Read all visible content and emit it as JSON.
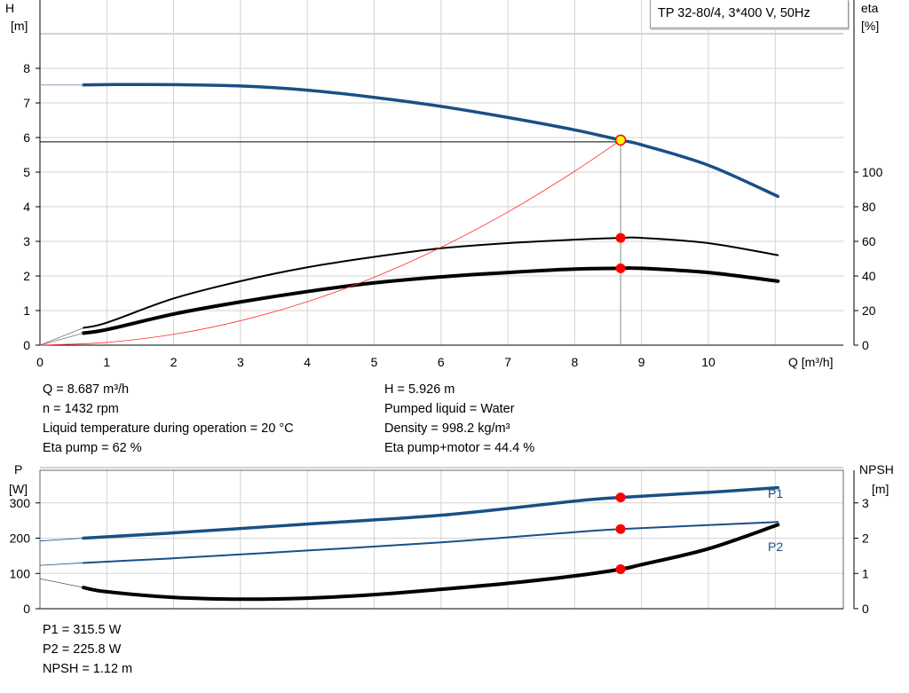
{
  "title": "TP 32-80/4, 3*400 V, 50Hz",
  "colors": {
    "head": "#1a4f86",
    "eta": "#000000",
    "system": "#ff2a2a",
    "duty_point": "#ff0000",
    "duty_point_head": "#ffff00",
    "grid": "#d3d3d3"
  },
  "chart_data": [
    {
      "type": "line",
      "xlabel": "Q [m³/h]",
      "ylabel_left": [
        "H",
        "[m]"
      ],
      "ylabel_right": [
        "eta",
        "[%]"
      ],
      "xlim": [
        0,
        12
      ],
      "ylim_left": [
        0,
        10
      ],
      "ylim_right": [
        0,
        100
      ],
      "xticks": [
        "0",
        "1",
        "2",
        "3",
        "4",
        "5",
        "6",
        "7",
        "8",
        "9",
        "10"
      ],
      "yticks_left": [
        "0",
        "1",
        "2",
        "3",
        "4",
        "5",
        "6",
        "7",
        "8"
      ],
      "yticks_right": [
        "0",
        "20",
        "40",
        "60",
        "80",
        "100"
      ],
      "grid": true,
      "series": [
        {
          "id": "head",
          "axis": "left",
          "x": [
            0.65,
            1,
            2,
            3,
            4,
            5,
            6,
            7,
            8,
            8.687,
            9,
            10,
            11.04
          ],
          "y": [
            7.52,
            7.53,
            7.53,
            7.49,
            7.37,
            7.16,
            6.9,
            6.58,
            6.22,
            5.926,
            5.79,
            5.2,
            4.3
          ]
        },
        {
          "id": "eta-pump",
          "axis": "right",
          "x": [
            0.65,
            1,
            2,
            3,
            4,
            5,
            6,
            7,
            8,
            8.687,
            9,
            10,
            11.04
          ],
          "y": [
            10,
            13,
            27,
            37,
            45,
            51,
            56,
            59,
            61,
            62,
            62,
            59,
            52
          ]
        },
        {
          "id": "eta-pump-motor",
          "axis": "right",
          "x": [
            0.65,
            1,
            2,
            3,
            4,
            5,
            6,
            7,
            8,
            8.687,
            9,
            10,
            11.04
          ],
          "y": [
            7,
            9,
            18,
            25,
            31,
            36,
            39.5,
            42,
            44,
            44.4,
            44.4,
            42,
            37
          ]
        },
        {
          "id": "system-curve",
          "axis": "left",
          "x": [
            0,
            1,
            2,
            3,
            4,
            5,
            6,
            7,
            8,
            8.687
          ],
          "y": [
            0,
            0.079,
            0.314,
            0.707,
            1.256,
            1.963,
            2.827,
            3.848,
            5.026,
            5.926
          ]
        }
      ],
      "operating_point": {
        "Q": 8.687,
        "H": 5.926,
        "eta_pump": 62,
        "eta_pump_motor": 44.4
      }
    },
    {
      "type": "line",
      "ylabel_left": [
        "P",
        "[W]"
      ],
      "ylabel_right": [
        "NPSH",
        "[m]"
      ],
      "xlim": [
        0,
        12
      ],
      "ylim_left": [
        0,
        400
      ],
      "ylim_right": [
        0,
        4
      ],
      "yticks_left": [
        "0",
        "100",
        "200",
        "300"
      ],
      "yticks_right": [
        "0",
        "1",
        "2",
        "3"
      ],
      "grid": true,
      "series": [
        {
          "id": "P1",
          "name": "P1",
          "axis": "left",
          "x": [
            0.65,
            2,
            4,
            6,
            8,
            8.687,
            10,
            11.04
          ],
          "y": [
            200,
            215,
            240,
            265,
            305,
            315.5,
            330,
            343
          ]
        },
        {
          "id": "P2",
          "name": "P2",
          "axis": "left",
          "x": [
            0.65,
            2,
            4,
            6,
            8,
            8.687,
            10,
            11.04
          ],
          "y": [
            130,
            143,
            165,
            188,
            217,
            225.8,
            237,
            246
          ]
        },
        {
          "id": "NPSH",
          "axis": "right",
          "x": [
            0.65,
            1,
            2,
            3,
            4,
            5,
            6,
            7,
            8,
            8.687,
            9,
            10,
            11.04
          ],
          "y": [
            0.6,
            0.48,
            0.32,
            0.27,
            0.3,
            0.4,
            0.55,
            0.72,
            0.93,
            1.12,
            1.25,
            1.7,
            2.38
          ]
        }
      ],
      "operating_point": {
        "Q": 8.687,
        "P1": 315.5,
        "P2": 225.8,
        "NPSH": 1.12
      }
    }
  ],
  "info": {
    "left": [
      "Q = 8.687 m³/h",
      "n = 1432 rpm",
      "Liquid temperature during operation = 20 °C",
      "Eta pump = 62 %"
    ],
    "right": [
      "H = 5.926 m",
      "Pumped liquid = Water",
      "Density = 998.2 kg/m³",
      "Eta pump+motor = 44.4 %"
    ],
    "bottom": [
      "P1 = 315.5 W",
      "P2 = 225.8 W",
      "NPSH = 1.12 m"
    ]
  }
}
